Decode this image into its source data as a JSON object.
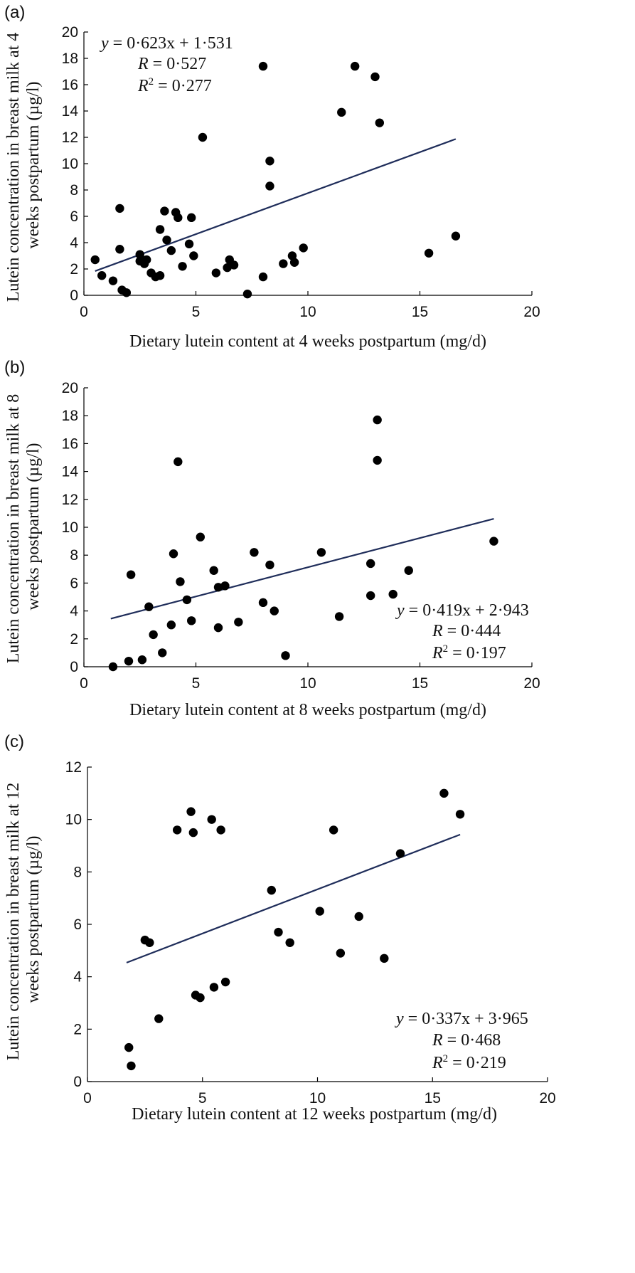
{
  "colors": {
    "point": "#000000",
    "trend": "#1f2d5a",
    "axis": "#000000"
  },
  "chart_data": [
    {
      "type": "scatter",
      "panel_label": "(a)",
      "xlabel": "Dietary lutein content at 4 weeks postpartum (mg/d)",
      "ylabel_lines": [
        "Lutein concentration in breast milk at 4",
        "weeks postpartum (µg/l)"
      ],
      "xlim": [
        0,
        20
      ],
      "ylim": [
        0,
        20
      ],
      "xticks": [
        0,
        5,
        10,
        15,
        20
      ],
      "yticks": [
        0,
        2,
        4,
        6,
        8,
        10,
        12,
        14,
        16,
        18,
        20
      ],
      "equation": {
        "y": "y",
        "eq": " = 0·623x + 1·531",
        "r_label": "R",
        "r_value": " = 0·527",
        "r2_label": "R",
        "r2_sup": "2",
        "r2_value": " = 0·277"
      },
      "equation_position": "top-left",
      "trend": {
        "slope": 0.623,
        "intercept": 1.531,
        "x_range": [
          0.5,
          16.6
        ]
      },
      "points": [
        [
          0.5,
          2.7
        ],
        [
          0.8,
          1.5
        ],
        [
          1.3,
          1.1
        ],
        [
          1.6,
          3.5
        ],
        [
          1.6,
          6.6
        ],
        [
          1.7,
          0.4
        ],
        [
          1.9,
          0.2
        ],
        [
          2.5,
          3.1
        ],
        [
          2.5,
          2.6
        ],
        [
          2.7,
          2.4
        ],
        [
          2.8,
          2.7
        ],
        [
          3.0,
          1.7
        ],
        [
          3.2,
          1.4
        ],
        [
          3.4,
          1.5
        ],
        [
          3.4,
          5.0
        ],
        [
          3.6,
          6.4
        ],
        [
          3.7,
          4.2
        ],
        [
          3.9,
          3.4
        ],
        [
          4.1,
          6.3
        ],
        [
          4.2,
          5.9
        ],
        [
          4.4,
          2.2
        ],
        [
          4.7,
          3.9
        ],
        [
          4.8,
          5.9
        ],
        [
          4.9,
          3.0
        ],
        [
          5.3,
          12.0
        ],
        [
          5.9,
          1.7
        ],
        [
          6.4,
          2.1
        ],
        [
          6.5,
          2.7
        ],
        [
          6.7,
          2.3
        ],
        [
          7.3,
          0.1
        ],
        [
          8.0,
          17.4
        ],
        [
          8.0,
          1.4
        ],
        [
          8.3,
          10.2
        ],
        [
          8.3,
          8.3
        ],
        [
          8.9,
          2.4
        ],
        [
          9.3,
          3.0
        ],
        [
          9.4,
          2.5
        ],
        [
          9.8,
          3.6
        ],
        [
          11.5,
          13.9
        ],
        [
          12.1,
          17.4
        ],
        [
          13.0,
          16.6
        ],
        [
          13.2,
          13.1
        ],
        [
          15.4,
          3.2
        ],
        [
          16.6,
          4.5
        ]
      ]
    },
    {
      "type": "scatter",
      "panel_label": "(b)",
      "xlabel": "Dietary lutein content at 8 weeks postpartum (mg/d)",
      "ylabel_lines": [
        "Lutein concentration in breast milk at 8",
        "weeks postpartum (µg/l)"
      ],
      "xlim": [
        0,
        20
      ],
      "ylim": [
        0,
        20
      ],
      "xticks": [
        0,
        5,
        10,
        15,
        20
      ],
      "yticks": [
        0,
        2,
        4,
        6,
        8,
        10,
        12,
        14,
        16,
        18,
        20
      ],
      "equation": {
        "y": "y",
        "eq": " = 0·419x + 2·943",
        "r_label": "R",
        "r_value": " = 0·444",
        "r2_label": "R",
        "r2_sup": "2",
        "r2_value": " = 0·197"
      },
      "equation_position": "bottom-right",
      "trend": {
        "slope": 0.419,
        "intercept": 2.943,
        "x_range": [
          1.2,
          18.3
        ]
      },
      "points": [
        [
          1.3,
          0.0
        ],
        [
          2.0,
          0.4
        ],
        [
          2.1,
          6.6
        ],
        [
          2.6,
          0.5
        ],
        [
          2.9,
          4.3
        ],
        [
          3.1,
          2.3
        ],
        [
          3.5,
          1.0
        ],
        [
          3.9,
          3.0
        ],
        [
          4.0,
          8.1
        ],
        [
          4.2,
          14.7
        ],
        [
          4.3,
          6.1
        ],
        [
          4.6,
          4.8
        ],
        [
          4.8,
          3.3
        ],
        [
          5.2,
          9.3
        ],
        [
          5.8,
          6.9
        ],
        [
          6.0,
          2.8
        ],
        [
          6.0,
          5.7
        ],
        [
          6.3,
          5.8
        ],
        [
          6.9,
          3.2
        ],
        [
          7.6,
          8.2
        ],
        [
          8.0,
          4.6
        ],
        [
          8.3,
          7.3
        ],
        [
          8.5,
          4.0
        ],
        [
          9.0,
          0.8
        ],
        [
          10.6,
          8.2
        ],
        [
          11.4,
          3.6
        ],
        [
          12.8,
          7.4
        ],
        [
          12.8,
          5.1
        ],
        [
          13.1,
          17.7
        ],
        [
          13.1,
          14.8
        ],
        [
          13.8,
          5.2
        ],
        [
          14.5,
          6.9
        ],
        [
          18.3,
          9.0
        ]
      ]
    },
    {
      "type": "scatter",
      "panel_label": "(c)",
      "xlabel": "Dietary lutein content at 12 weeks postpartum (mg/d)",
      "ylabel_lines": [
        "Lutein concentration in breast milk at 12",
        "weeks postpartum (µg/l)"
      ],
      "xlim": [
        0,
        20
      ],
      "ylim": [
        0,
        12
      ],
      "xticks": [
        0,
        5,
        10,
        15,
        20
      ],
      "yticks": [
        0,
        2,
        4,
        6,
        8,
        10,
        12
      ],
      "equation": {
        "y": "y",
        "eq": " = 0·337x + 3·965",
        "r_label": "R",
        "r_value": " = 0·468",
        "r2_label": "R",
        "r2_sup": "2",
        "r2_value": " = 0·219"
      },
      "equation_position": "bottom-right",
      "trend": {
        "slope": 0.337,
        "intercept": 3.965,
        "x_range": [
          1.7,
          16.2
        ]
      },
      "points": [
        [
          1.8,
          1.3
        ],
        [
          1.9,
          0.6
        ],
        [
          2.5,
          5.4
        ],
        [
          2.7,
          5.3
        ],
        [
          3.1,
          2.4
        ],
        [
          3.9,
          9.6
        ],
        [
          4.5,
          10.3
        ],
        [
          4.6,
          9.5
        ],
        [
          4.7,
          3.3
        ],
        [
          4.9,
          3.2
        ],
        [
          5.4,
          10.0
        ],
        [
          5.5,
          3.6
        ],
        [
          5.8,
          9.6
        ],
        [
          6.0,
          3.8
        ],
        [
          8.0,
          7.3
        ],
        [
          8.3,
          5.7
        ],
        [
          8.8,
          5.3
        ],
        [
          10.1,
          6.5
        ],
        [
          10.7,
          9.6
        ],
        [
          11.0,
          4.9
        ],
        [
          11.8,
          6.3
        ],
        [
          12.9,
          4.7
        ],
        [
          13.6,
          8.7
        ],
        [
          15.5,
          11.0
        ],
        [
          16.2,
          10.2
        ]
      ]
    }
  ]
}
